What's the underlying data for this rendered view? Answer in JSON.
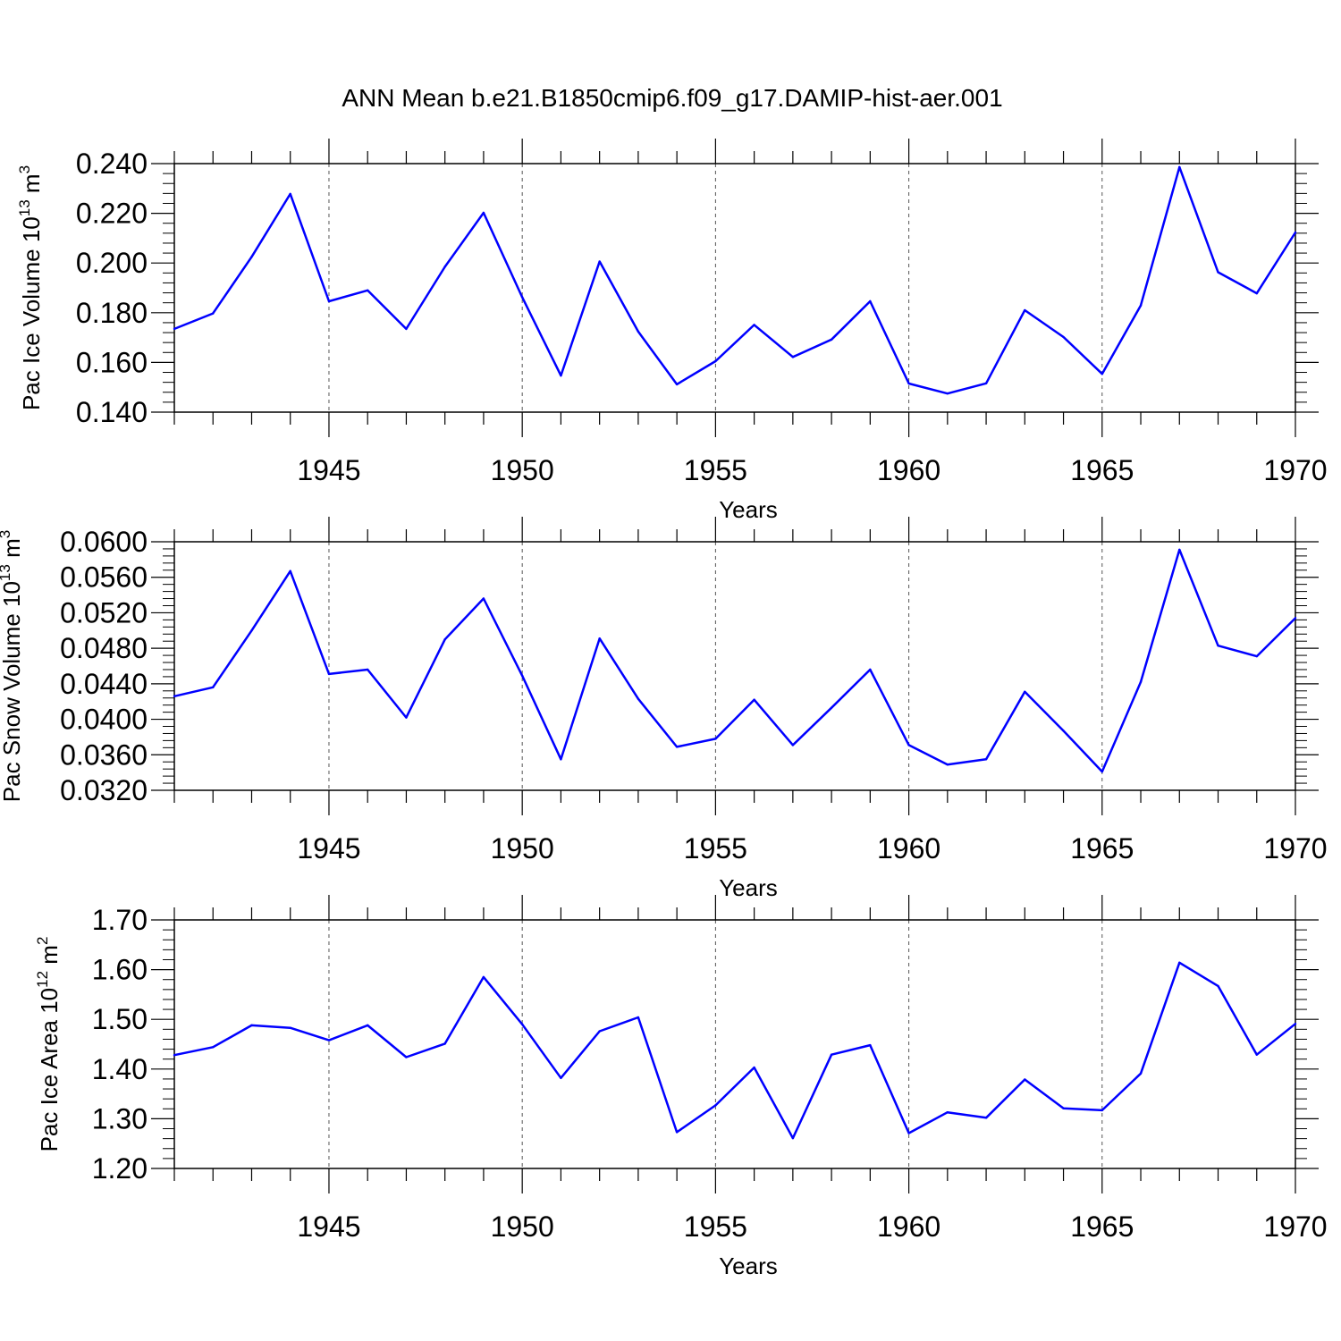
{
  "title": "ANN Mean b.e21.B1850cmip6.f09_g17.DAMIP-hist-aer.001",
  "chart_data": [
    {
      "type": "line",
      "xlabel": "Years",
      "ylabel": "Pac Ice Volume 10",
      "ylabel_sup": "13",
      "ylabel_unit": "m",
      "ylabel_unit_sup": "3",
      "xlim": [
        1941,
        1970
      ],
      "ylim": [
        0.14,
        0.24
      ],
      "xticks": [
        "1945",
        "1950",
        "1955",
        "1960",
        "1965",
        "1970"
      ],
      "yticks": [
        "0.140",
        "0.160",
        "0.180",
        "0.200",
        "0.220",
        "0.240"
      ],
      "x": [
        1941,
        1942,
        1943,
        1944,
        1945,
        1946,
        1947,
        1948,
        1949,
        1950,
        1951,
        1952,
        1953,
        1954,
        1955,
        1956,
        1957,
        1958,
        1959,
        1960,
        1961,
        1962,
        1963,
        1964,
        1965,
        1966,
        1967,
        1968,
        1969,
        1970
      ],
      "values": [
        0.1735,
        0.1797,
        0.2025,
        0.2278,
        0.1846,
        0.189,
        0.1735,
        0.1985,
        0.2202,
        0.1862,
        0.1547,
        0.2006,
        0.1724,
        0.1512,
        0.1605,
        0.1751,
        0.1622,
        0.1692,
        0.1846,
        0.1515,
        0.1475,
        0.1516,
        0.181,
        0.1702,
        0.1554,
        0.1829,
        0.2386,
        0.1963,
        0.1878,
        0.2123
      ],
      "color": "#0000ff"
    },
    {
      "type": "line",
      "xlabel": "Years",
      "ylabel": "Pac Snow Volume 10",
      "ylabel_sup": "13",
      "ylabel_unit": "m",
      "ylabel_unit_sup": "3",
      "xlim": [
        1941,
        1970
      ],
      "ylim": [
        0.032,
        0.06
      ],
      "xticks": [
        "1945",
        "1950",
        "1955",
        "1960",
        "1965",
        "1970"
      ],
      "yticks": [
        "0.0320",
        "0.0360",
        "0.0400",
        "0.0440",
        "0.0480",
        "0.0520",
        "0.0560",
        "0.0600"
      ],
      "x": [
        1941,
        1942,
        1943,
        1944,
        1945,
        1946,
        1947,
        1948,
        1949,
        1950,
        1951,
        1952,
        1953,
        1954,
        1955,
        1956,
        1957,
        1958,
        1959,
        1960,
        1961,
        1962,
        1963,
        1964,
        1965,
        1966,
        1967,
        1968,
        1969,
        1970
      ],
      "values": [
        0.0426,
        0.0436,
        0.05,
        0.0567,
        0.0451,
        0.0456,
        0.0402,
        0.049,
        0.0536,
        0.0449,
        0.0355,
        0.0491,
        0.0423,
        0.0369,
        0.0378,
        0.0422,
        0.0371,
        0.0413,
        0.0456,
        0.0371,
        0.0349,
        0.0355,
        0.0431,
        0.0387,
        0.0341,
        0.0442,
        0.0591,
        0.0483,
        0.0471,
        0.0514
      ],
      "color": "#0000ff"
    },
    {
      "type": "line",
      "xlabel": "Years",
      "ylabel": "Pac Ice Area 10",
      "ylabel_sup": "12",
      "ylabel_unit": "m",
      "ylabel_unit_sup": "2",
      "xlim": [
        1941,
        1970
      ],
      "ylim": [
        1.2,
        1.7
      ],
      "xticks": [
        "1945",
        "1950",
        "1955",
        "1960",
        "1965",
        "1970"
      ],
      "yticks": [
        "1.20",
        "1.30",
        "1.40",
        "1.50",
        "1.60",
        "1.70"
      ],
      "x": [
        1941,
        1942,
        1943,
        1944,
        1945,
        1946,
        1947,
        1948,
        1949,
        1950,
        1951,
        1952,
        1953,
        1954,
        1955,
        1956,
        1957,
        1958,
        1959,
        1960,
        1961,
        1962,
        1963,
        1964,
        1965,
        1966,
        1967,
        1968,
        1969,
        1970
      ],
      "values": [
        1.428,
        1.444,
        1.488,
        1.483,
        1.458,
        1.488,
        1.424,
        1.451,
        1.585,
        1.49,
        1.382,
        1.476,
        1.504,
        1.273,
        1.327,
        1.403,
        1.261,
        1.429,
        1.448,
        1.271,
        1.313,
        1.302,
        1.379,
        1.321,
        1.317,
        1.391,
        1.614,
        1.567,
        1.429,
        1.491
      ],
      "color": "#0000ff"
    }
  ]
}
